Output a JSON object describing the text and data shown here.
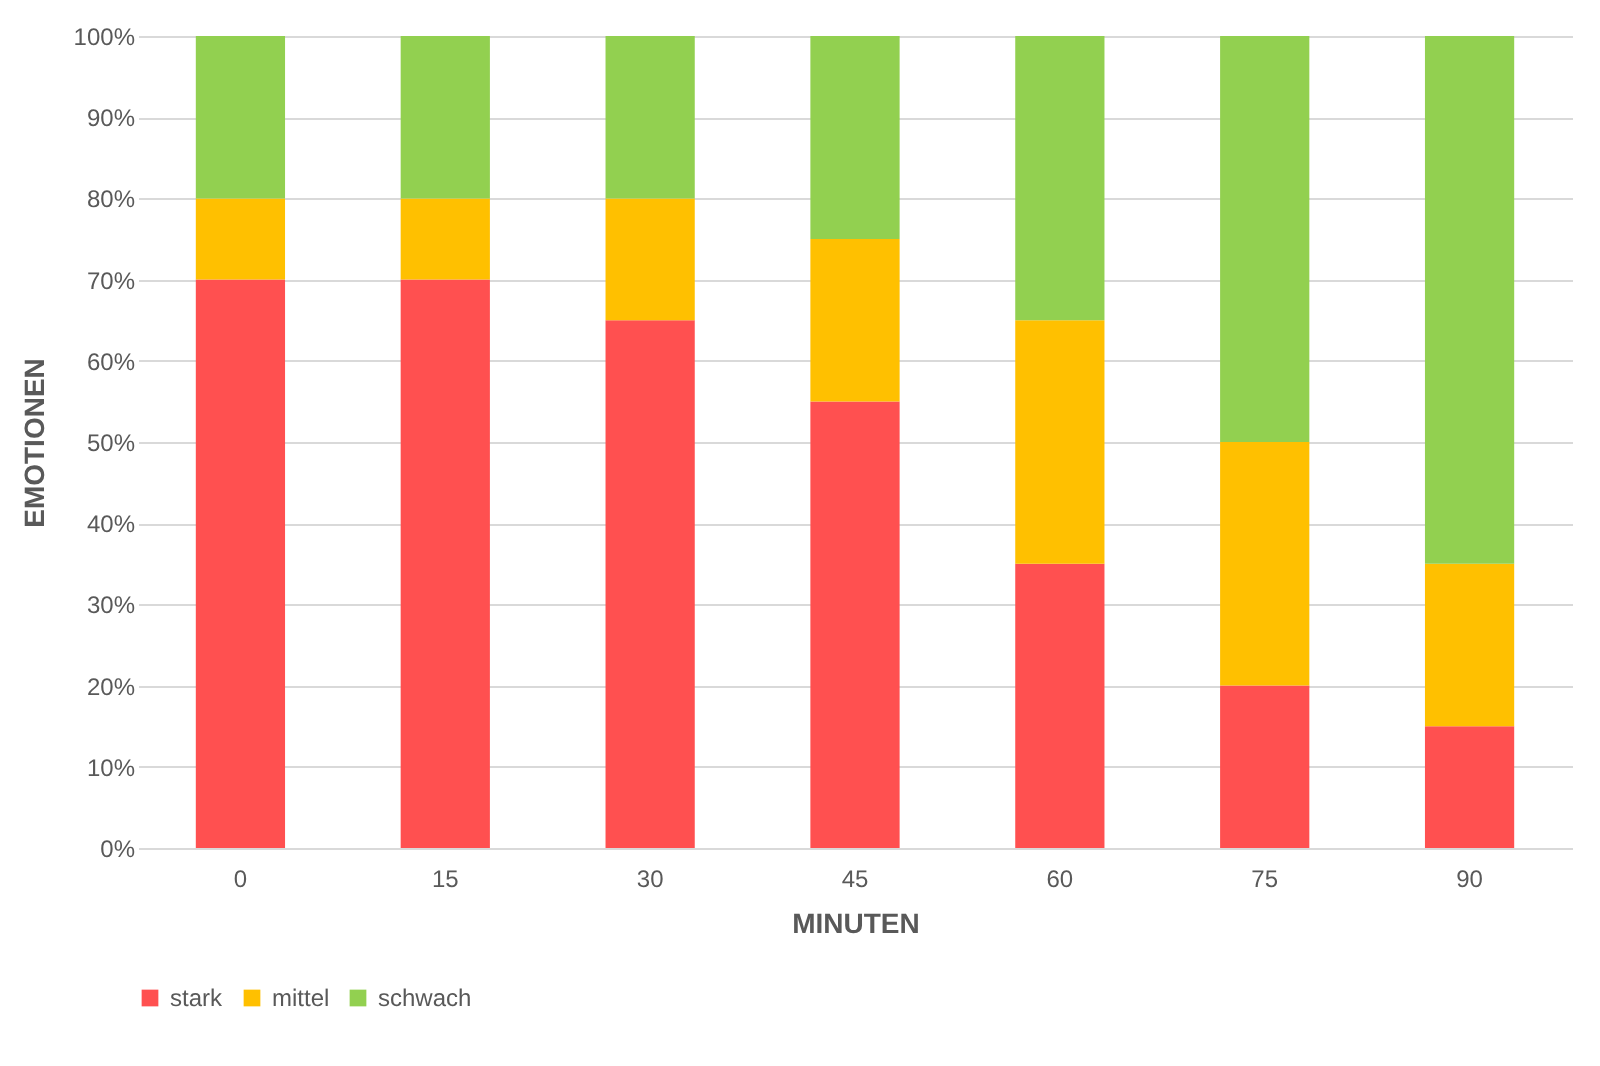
{
  "chart_data": {
    "type": "bar",
    "stacked": true,
    "xlabel": "MINUTEN",
    "ylabel": "EMOTIONEN",
    "categories": [
      "0",
      "15",
      "30",
      "45",
      "60",
      "75",
      "90"
    ],
    "series": [
      {
        "name": "stark",
        "color": "#ff5050",
        "values": [
          70,
          70,
          65,
          55,
          35,
          20,
          15
        ]
      },
      {
        "name": "mittel",
        "color": "#ffc000",
        "values": [
          10,
          10,
          15,
          20,
          30,
          30,
          20
        ]
      },
      {
        "name": "schwach",
        "color": "#92d050",
        "values": [
          20,
          20,
          20,
          25,
          35,
          50,
          65
        ]
      }
    ],
    "ylim": [
      0,
      100
    ],
    "yticks": [
      {
        "value": 0,
        "label": "0%"
      },
      {
        "value": 10,
        "label": "10%"
      },
      {
        "value": 20,
        "label": "20%"
      },
      {
        "value": 30,
        "label": "30%"
      },
      {
        "value": 40,
        "label": "40%"
      },
      {
        "value": 50,
        "label": "50%"
      },
      {
        "value": 60,
        "label": "60%"
      },
      {
        "value": 70,
        "label": "70%"
      },
      {
        "value": 80,
        "label": "80%"
      },
      {
        "value": 90,
        "label": "90%"
      },
      {
        "value": 100,
        "label": "100%"
      }
    ],
    "grid": "y",
    "legend": "bottom"
  }
}
